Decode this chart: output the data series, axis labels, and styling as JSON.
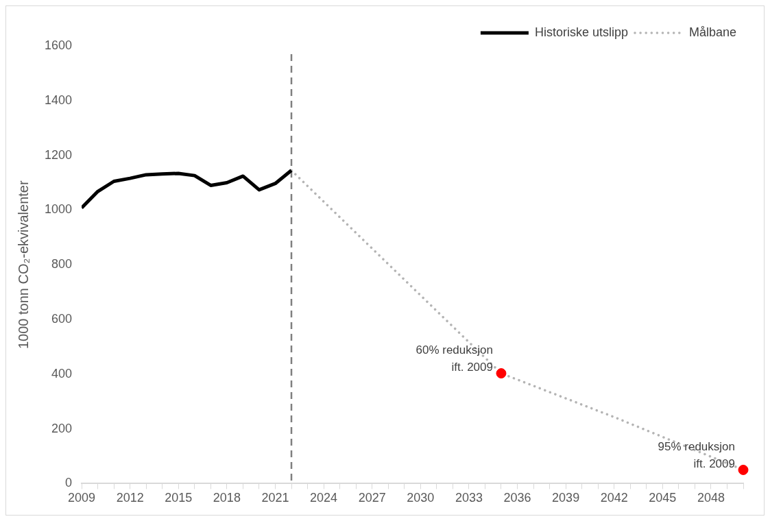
{
  "chart_data": {
    "type": "line",
    "ylabel": "1000 tonn CO₂-ekvivalenter",
    "xlim": [
      2009,
      2050
    ],
    "ylim": [
      0,
      1600
    ],
    "yticks": [
      0,
      200,
      400,
      600,
      800,
      1000,
      1200,
      1400,
      1600
    ],
    "xticks": [
      2009,
      {
        "value": 2010,
        "label": null
      },
      {
        "value": 2011,
        "label": null
      },
      2012,
      {
        "value": 2013,
        "label": null
      },
      {
        "value": 2014,
        "label": null
      },
      2015,
      {
        "value": 2016,
        "label": null
      },
      {
        "value": 2017,
        "label": null
      },
      2018,
      {
        "value": 2019,
        "label": null
      },
      {
        "value": 2020,
        "label": null
      },
      2021,
      {
        "value": 2022,
        "label": null
      },
      {
        "value": 2023,
        "label": null
      },
      2024,
      {
        "value": 2025,
        "label": null
      },
      {
        "value": 2026,
        "label": null
      },
      2027,
      {
        "value": 2028,
        "label": null
      },
      {
        "value": 2029,
        "label": null
      },
      2030,
      {
        "value": 2031,
        "label": null
      },
      {
        "value": 2032,
        "label": null
      },
      2033,
      {
        "value": 2034,
        "label": null
      },
      {
        "value": 2035,
        "label": null
      },
      2036,
      {
        "value": 2037,
        "label": null
      },
      {
        "value": 2038,
        "label": null
      },
      2039,
      {
        "value": 2040,
        "label": null
      },
      {
        "value": 2041,
        "label": null
      },
      2042,
      {
        "value": 2043,
        "label": null
      },
      {
        "value": 2044,
        "label": null
      },
      2045,
      {
        "value": 2046,
        "label": null
      },
      {
        "value": 2047,
        "label": null
      },
      2048,
      {
        "value": 2049,
        "label": null
      },
      {
        "value": 2050,
        "label": null
      }
    ],
    "grid": false,
    "legend": "top right",
    "series": [
      {
        "name": "Historiske utslipp",
        "color": "#000000",
        "line_style": "solid",
        "marker": "none",
        "x": [
          2009,
          2010,
          2011,
          2012,
          2013,
          2014,
          2015,
          2016,
          2017,
          2018,
          2019,
          2020,
          2021,
          2022
        ],
        "values": [
          1008,
          1068,
          1105,
          1116,
          1129,
          1132,
          1134,
          1126,
          1090,
          1100,
          1124,
          1074,
          1097,
          1145
        ]
      },
      {
        "name": "Målbane",
        "color": "#b4b4b4",
        "line_style": "dotted",
        "marker": "none",
        "x": [
          2022,
          2035,
          2042,
          2050
        ],
        "values": [
          1145,
          403,
          243,
          50
        ]
      },
      {
        "type": "scatter",
        "color": "#ff0000",
        "marker": "circle",
        "x": [
          2035,
          2050
        ],
        "values": [
          403,
          50
        ]
      }
    ],
    "ref_lines": [
      {
        "axis": "x",
        "value": 2022,
        "color": "#7f7f7f",
        "line_style": "dashed"
      }
    ],
    "annotations": [
      {
        "text": "60% reduksjon\nift. 2009",
        "x": 2035,
        "y": 403
      },
      {
        "text": "95% reduksjon\nift. 2009",
        "x": 2050,
        "y": 50
      }
    ]
  }
}
